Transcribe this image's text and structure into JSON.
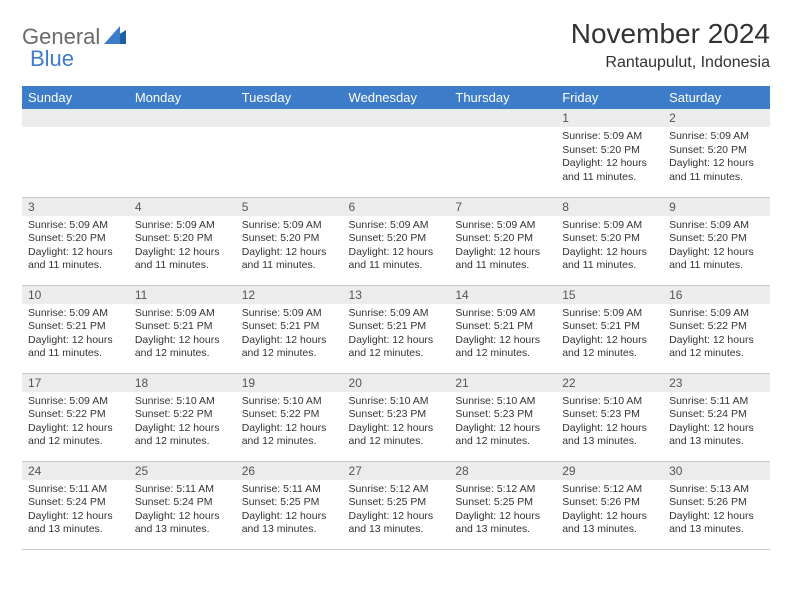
{
  "logo": {
    "part1": "General",
    "part2": "Blue"
  },
  "title": "November 2024",
  "location": "Rantaupulut, Indonesia",
  "colors": {
    "header_bg": "#3d7cc9",
    "header_text": "#ffffff",
    "daynum_bg": "#ececec",
    "row_divider": "#c9c9c9",
    "logo_gray": "#6a6a6a",
    "logo_blue": "#3d7cc9",
    "background": "#ffffff",
    "text": "#333333"
  },
  "day_headers": [
    "Sunday",
    "Monday",
    "Tuesday",
    "Wednesday",
    "Thursday",
    "Friday",
    "Saturday"
  ],
  "weeks": [
    [
      {
        "blank": true
      },
      {
        "blank": true
      },
      {
        "blank": true
      },
      {
        "blank": true
      },
      {
        "blank": true
      },
      {
        "n": "1",
        "sunrise": "Sunrise: 5:09 AM",
        "sunset": "Sunset: 5:20 PM",
        "daylight": "Daylight: 12 hours and 11 minutes."
      },
      {
        "n": "2",
        "sunrise": "Sunrise: 5:09 AM",
        "sunset": "Sunset: 5:20 PM",
        "daylight": "Daylight: 12 hours and 11 minutes."
      }
    ],
    [
      {
        "n": "3",
        "sunrise": "Sunrise: 5:09 AM",
        "sunset": "Sunset: 5:20 PM",
        "daylight": "Daylight: 12 hours and 11 minutes."
      },
      {
        "n": "4",
        "sunrise": "Sunrise: 5:09 AM",
        "sunset": "Sunset: 5:20 PM",
        "daylight": "Daylight: 12 hours and 11 minutes."
      },
      {
        "n": "5",
        "sunrise": "Sunrise: 5:09 AM",
        "sunset": "Sunset: 5:20 PM",
        "daylight": "Daylight: 12 hours and 11 minutes."
      },
      {
        "n": "6",
        "sunrise": "Sunrise: 5:09 AM",
        "sunset": "Sunset: 5:20 PM",
        "daylight": "Daylight: 12 hours and 11 minutes."
      },
      {
        "n": "7",
        "sunrise": "Sunrise: 5:09 AM",
        "sunset": "Sunset: 5:20 PM",
        "daylight": "Daylight: 12 hours and 11 minutes."
      },
      {
        "n": "8",
        "sunrise": "Sunrise: 5:09 AM",
        "sunset": "Sunset: 5:20 PM",
        "daylight": "Daylight: 12 hours and 11 minutes."
      },
      {
        "n": "9",
        "sunrise": "Sunrise: 5:09 AM",
        "sunset": "Sunset: 5:20 PM",
        "daylight": "Daylight: 12 hours and 11 minutes."
      }
    ],
    [
      {
        "n": "10",
        "sunrise": "Sunrise: 5:09 AM",
        "sunset": "Sunset: 5:21 PM",
        "daylight": "Daylight: 12 hours and 11 minutes."
      },
      {
        "n": "11",
        "sunrise": "Sunrise: 5:09 AM",
        "sunset": "Sunset: 5:21 PM",
        "daylight": "Daylight: 12 hours and 12 minutes."
      },
      {
        "n": "12",
        "sunrise": "Sunrise: 5:09 AM",
        "sunset": "Sunset: 5:21 PM",
        "daylight": "Daylight: 12 hours and 12 minutes."
      },
      {
        "n": "13",
        "sunrise": "Sunrise: 5:09 AM",
        "sunset": "Sunset: 5:21 PM",
        "daylight": "Daylight: 12 hours and 12 minutes."
      },
      {
        "n": "14",
        "sunrise": "Sunrise: 5:09 AM",
        "sunset": "Sunset: 5:21 PM",
        "daylight": "Daylight: 12 hours and 12 minutes."
      },
      {
        "n": "15",
        "sunrise": "Sunrise: 5:09 AM",
        "sunset": "Sunset: 5:21 PM",
        "daylight": "Daylight: 12 hours and 12 minutes."
      },
      {
        "n": "16",
        "sunrise": "Sunrise: 5:09 AM",
        "sunset": "Sunset: 5:22 PM",
        "daylight": "Daylight: 12 hours and 12 minutes."
      }
    ],
    [
      {
        "n": "17",
        "sunrise": "Sunrise: 5:09 AM",
        "sunset": "Sunset: 5:22 PM",
        "daylight": "Daylight: 12 hours and 12 minutes."
      },
      {
        "n": "18",
        "sunrise": "Sunrise: 5:10 AM",
        "sunset": "Sunset: 5:22 PM",
        "daylight": "Daylight: 12 hours and 12 minutes."
      },
      {
        "n": "19",
        "sunrise": "Sunrise: 5:10 AM",
        "sunset": "Sunset: 5:22 PM",
        "daylight": "Daylight: 12 hours and 12 minutes."
      },
      {
        "n": "20",
        "sunrise": "Sunrise: 5:10 AM",
        "sunset": "Sunset: 5:23 PM",
        "daylight": "Daylight: 12 hours and 12 minutes."
      },
      {
        "n": "21",
        "sunrise": "Sunrise: 5:10 AM",
        "sunset": "Sunset: 5:23 PM",
        "daylight": "Daylight: 12 hours and 12 minutes."
      },
      {
        "n": "22",
        "sunrise": "Sunrise: 5:10 AM",
        "sunset": "Sunset: 5:23 PM",
        "daylight": "Daylight: 12 hours and 13 minutes."
      },
      {
        "n": "23",
        "sunrise": "Sunrise: 5:11 AM",
        "sunset": "Sunset: 5:24 PM",
        "daylight": "Daylight: 12 hours and 13 minutes."
      }
    ],
    [
      {
        "n": "24",
        "sunrise": "Sunrise: 5:11 AM",
        "sunset": "Sunset: 5:24 PM",
        "daylight": "Daylight: 12 hours and 13 minutes."
      },
      {
        "n": "25",
        "sunrise": "Sunrise: 5:11 AM",
        "sunset": "Sunset: 5:24 PM",
        "daylight": "Daylight: 12 hours and 13 minutes."
      },
      {
        "n": "26",
        "sunrise": "Sunrise: 5:11 AM",
        "sunset": "Sunset: 5:25 PM",
        "daylight": "Daylight: 12 hours and 13 minutes."
      },
      {
        "n": "27",
        "sunrise": "Sunrise: 5:12 AM",
        "sunset": "Sunset: 5:25 PM",
        "daylight": "Daylight: 12 hours and 13 minutes."
      },
      {
        "n": "28",
        "sunrise": "Sunrise: 5:12 AM",
        "sunset": "Sunset: 5:25 PM",
        "daylight": "Daylight: 12 hours and 13 minutes."
      },
      {
        "n": "29",
        "sunrise": "Sunrise: 5:12 AM",
        "sunset": "Sunset: 5:26 PM",
        "daylight": "Daylight: 12 hours and 13 minutes."
      },
      {
        "n": "30",
        "sunrise": "Sunrise: 5:13 AM",
        "sunset": "Sunset: 5:26 PM",
        "daylight": "Daylight: 12 hours and 13 minutes."
      }
    ]
  ]
}
